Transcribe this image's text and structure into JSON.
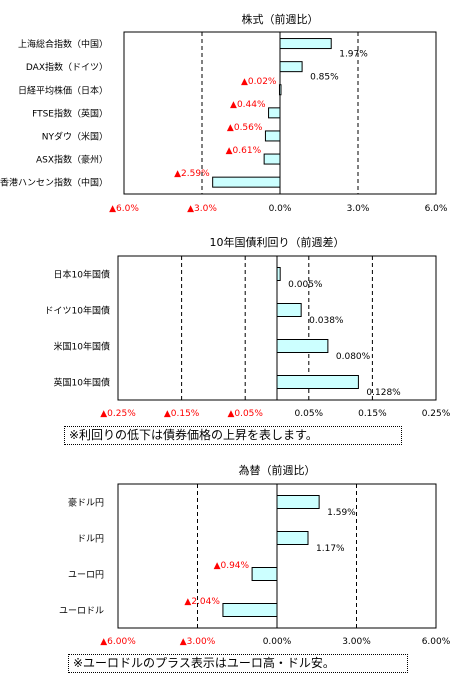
{
  "chart_data": [
    {
      "type": "bar",
      "orientation": "horizontal",
      "title": "株式（前週比）",
      "categories": [
        "上海総合指数（中国）",
        "DAX指数（ドイツ）",
        "日経平均株価（日本）",
        "FTSE指数（英国）",
        "NYダウ（米国）",
        "ASX指数（豪州）",
        "香港ハンセン指数（中国）"
      ],
      "values": [
        1.97,
        0.85,
        -0.02,
        -0.44,
        -0.56,
        -0.61,
        -2.59
      ],
      "value_labels": [
        "1.97%",
        "0.85%",
        "▲0.02%",
        "▲0.44%",
        "▲0.56%",
        "▲0.61%",
        "▲2.59%"
      ],
      "xlim": [
        -6.0,
        6.0
      ],
      "ticks": [
        -6.0,
        -3.0,
        0.0,
        3.0,
        6.0
      ],
      "tick_labels": [
        "▲6.0%",
        "▲3.0%",
        "0.0%",
        "3.0%",
        "6.0%"
      ],
      "grid": "dashed-vertical",
      "colors": {
        "bar_fill": "#ccffff",
        "bar_stroke": "#000000",
        "negative_text": "#ff0000"
      }
    },
    {
      "type": "bar",
      "orientation": "horizontal",
      "title": "10年国債利回り（前週差）",
      "categories": [
        "日本10年国債",
        "ドイツ10年国債",
        "米国10年国債",
        "英国10年国債"
      ],
      "values": [
        0.005,
        0.038,
        0.08,
        0.128
      ],
      "value_labels": [
        "0.005%",
        "0.038%",
        "0.080%",
        "0.128%"
      ],
      "xlim": [
        -0.25,
        0.25
      ],
      "ticks": [
        -0.25,
        -0.15,
        -0.05,
        0.05,
        0.15,
        0.25
      ],
      "tick_labels": [
        "▲0.25%",
        "▲0.15%",
        "▲0.05%",
        "0.05%",
        "0.15%",
        "0.25%"
      ],
      "grid": "dashed-vertical",
      "note": "※利回りの低下は債券価格の上昇を表します。",
      "colors": {
        "bar_fill": "#ccffff",
        "bar_stroke": "#000000",
        "negative_text": "#ff0000"
      }
    },
    {
      "type": "bar",
      "orientation": "horizontal",
      "title": "為替（前週比）",
      "categories": [
        "豪ドル円",
        "ドル円",
        "ユーロ円",
        "ユーロドル"
      ],
      "values": [
        1.59,
        1.17,
        -0.94,
        -2.04
      ],
      "value_labels": [
        "1.59%",
        "1.17%",
        "▲0.94%",
        "▲2.04%"
      ],
      "xlim": [
        -6.0,
        6.0
      ],
      "ticks": [
        -6.0,
        -3.0,
        0.0,
        3.0,
        6.0
      ],
      "tick_labels": [
        "▲6.00%",
        "▲3.00%",
        "0.00%",
        "3.00%",
        "6.00%"
      ],
      "grid": "dashed-vertical",
      "note": "※ユーロドルのプラス表示はユーロ高・ドル安。",
      "colors": {
        "bar_fill": "#ccffff",
        "bar_stroke": "#000000",
        "negative_text": "#ff0000"
      }
    }
  ]
}
